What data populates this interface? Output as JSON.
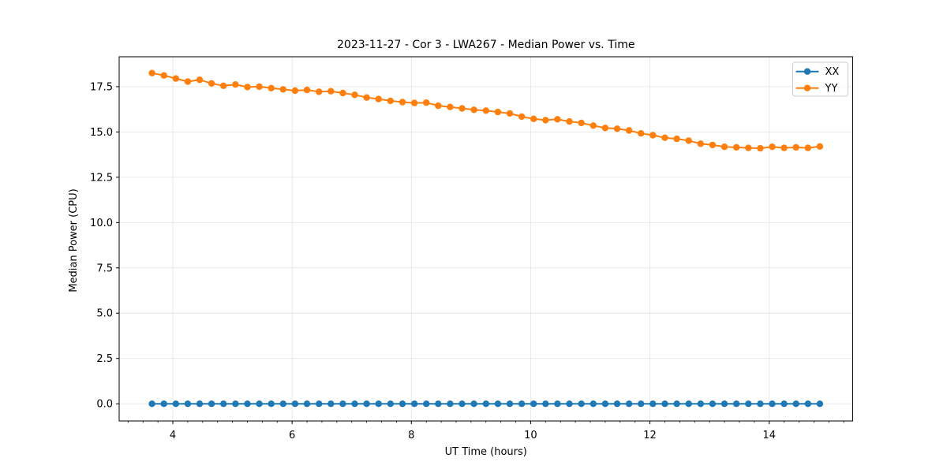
{
  "chart_data": {
    "type": "line",
    "title": "2023-11-27 - Cor 3 - LWA267 - Median Power vs. Time",
    "xlabel": "UT Time (hours)",
    "ylabel": "Median Power (CPU)",
    "xlim": [
      3.1,
      15.4
    ],
    "ylim": [
      -0.95,
      19.15
    ],
    "x_ticks": [
      4,
      6,
      8,
      10,
      12,
      14
    ],
    "x_tick_labels": [
      "4",
      "6",
      "8",
      "10",
      "12",
      "14"
    ],
    "x_minor_tick_start": 3.25,
    "x_minor_tick_step": 0.25,
    "y_ticks": [
      0.0,
      2.5,
      5.0,
      7.5,
      10.0,
      12.5,
      15.0,
      17.5
    ],
    "y_tick_labels": [
      "0.0",
      "2.5",
      "5.0",
      "7.5",
      "10.0",
      "12.5",
      "15.0",
      "17.5"
    ],
    "grid": true,
    "grid_color": "#e6e6e6",
    "spine_color": "#000000",
    "legend_position": "upper right",
    "legend_border_color": "#cccccc",
    "x": [
      3.65,
      3.85,
      4.05,
      4.25,
      4.45,
      4.65,
      4.85,
      5.05,
      5.25,
      5.45,
      5.65,
      5.85,
      6.05,
      6.25,
      6.45,
      6.65,
      6.85,
      7.05,
      7.25,
      7.45,
      7.65,
      7.85,
      8.05,
      8.25,
      8.45,
      8.65,
      8.85,
      9.05,
      9.25,
      9.45,
      9.65,
      9.85,
      10.05,
      10.25,
      10.45,
      10.65,
      10.85,
      11.05,
      11.25,
      11.45,
      11.65,
      11.85,
      12.05,
      12.25,
      12.45,
      12.65,
      12.85,
      13.05,
      13.25,
      13.45,
      13.65,
      13.85,
      14.05,
      14.25,
      14.45,
      14.65,
      14.85
    ],
    "series": [
      {
        "name": "XX",
        "color": "#1f77b4",
        "values": [
          0,
          0,
          0,
          0,
          0,
          0,
          0,
          0,
          0,
          0,
          0,
          0,
          0,
          0,
          0,
          0,
          0,
          0,
          0,
          0,
          0,
          0,
          0,
          0,
          0,
          0,
          0,
          0,
          0,
          0,
          0,
          0,
          0,
          0,
          0,
          0,
          0,
          0,
          0,
          0,
          0,
          0,
          0,
          0,
          0,
          0,
          0,
          0,
          0,
          0,
          0,
          0,
          0,
          0,
          0,
          0,
          0
        ]
      },
      {
        "name": "YY",
        "color": "#ff7f0e",
        "values": [
          18.25,
          18.12,
          17.95,
          17.78,
          17.88,
          17.68,
          17.55,
          17.62,
          17.48,
          17.5,
          17.42,
          17.35,
          17.28,
          17.32,
          17.22,
          17.25,
          17.15,
          17.05,
          16.9,
          16.82,
          16.72,
          16.65,
          16.6,
          16.62,
          16.45,
          16.38,
          16.3,
          16.22,
          16.18,
          16.1,
          16.02,
          15.85,
          15.72,
          15.65,
          15.7,
          15.58,
          15.5,
          15.35,
          15.22,
          15.18,
          15.08,
          14.92,
          14.82,
          14.68,
          14.62,
          14.52,
          14.35,
          14.28,
          14.18,
          14.15,
          14.12,
          14.1,
          14.18,
          14.12,
          14.15,
          14.12,
          14.2
        ]
      }
    ],
    "marker": "circle",
    "marker_radius": 4.2,
    "line_width": 2
  }
}
